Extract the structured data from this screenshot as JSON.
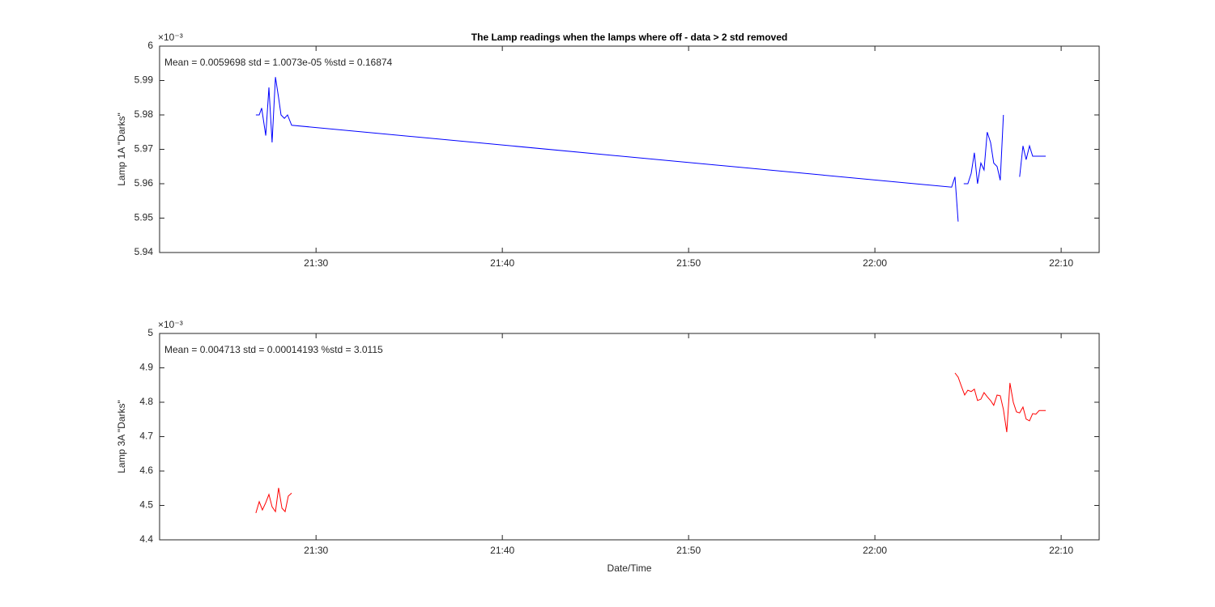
{
  "chart_data": [
    {
      "type": "line",
      "title": "The Lamp readings when the lamps where off - data > 2 std removed",
      "annotation": "Mean = 0.0059698  std = 1.0073e-05  %std = 0.16874",
      "ylabel": "Lamp 1A \"Darks\"",
      "y_exponent": "×10⁻³",
      "color": "#0000ff",
      "grid": false,
      "x": [
        1286.77,
        1286.95,
        1287.08,
        1287.3,
        1287.47,
        1287.64,
        1287.82,
        1287.99,
        1288.12,
        1288.3,
        1288.47,
        1288.69,
        1324.12,
        1324.3,
        1324.47,
        1324.6,
        1324.77,
        1324.99,
        1325.17,
        1325.34,
        1325.51,
        1325.69,
        1325.86,
        1326.03,
        1326.21,
        1326.38,
        1326.56,
        1326.73,
        1326.9,
        1327.5,
        1327.77,
        1327.95,
        1328.12,
        1328.3,
        1328.47,
        1329.17
      ],
      "values": [
        5.98,
        5.98,
        5.982,
        5.974,
        5.988,
        5.972,
        5.991,
        5.985,
        5.98,
        5.979,
        5.98,
        5.977,
        5.959,
        5.962,
        5.949,
        null,
        5.96,
        5.96,
        5.963,
        5.969,
        5.96,
        5.966,
        5.964,
        5.975,
        5.972,
        5.966,
        5.965,
        5.961,
        5.98,
        null,
        5.962,
        5.971,
        5.967,
        5.971,
        5.968,
        5.968
      ],
      "xlim": [
        1281.6,
        1332.04
      ],
      "xticks": [
        {
          "value": 1290,
          "label": "21:30"
        },
        {
          "value": 1300,
          "label": "21:40"
        },
        {
          "value": 1310,
          "label": "21:50"
        },
        {
          "value": 1320,
          "label": "22:00"
        },
        {
          "value": 1330,
          "label": "22:10"
        }
      ],
      "ylim": [
        5.94,
        6
      ],
      "yticks": [
        5.94,
        5.95,
        5.96,
        5.97,
        5.98,
        5.99,
        6
      ]
    },
    {
      "type": "line",
      "annotation": "Mean = 0.004713  std = 0.00014193  %std = 3.0115",
      "ylabel": "Lamp 3A \"Darks\"",
      "xlabel": "Date/Time",
      "y_exponent": "×10⁻³",
      "color": "#ff0000",
      "grid": false,
      "x": [
        1286.77,
        1286.95,
        1287.12,
        1287.3,
        1287.47,
        1287.64,
        1287.82,
        1287.99,
        1288.17,
        1288.34,
        1288.51,
        1288.69,
        1300,
        1324.3,
        1324.47,
        1324.64,
        1324.82,
        1324.99,
        1325.17,
        1325.34,
        1325.51,
        1325.69,
        1325.86,
        1326.03,
        1326.21,
        1326.38,
        1326.56,
        1326.73,
        1326.9,
        1327.08,
        1327.25,
        1327.43,
        1327.6,
        1327.77,
        1327.95,
        1328.12,
        1328.3,
        1328.47,
        1328.64,
        1328.82,
        1329.17
      ],
      "values": [
        4.478,
        4.511,
        4.487,
        4.508,
        4.532,
        4.496,
        4.482,
        4.551,
        4.492,
        4.482,
        4.527,
        4.536,
        null,
        4.885,
        4.873,
        4.847,
        4.821,
        4.835,
        4.831,
        4.838,
        4.805,
        4.809,
        4.828,
        4.816,
        4.805,
        4.791,
        4.821,
        4.819,
        4.779,
        4.713,
        4.856,
        4.8,
        4.772,
        4.769,
        4.786,
        4.751,
        4.746,
        4.767,
        4.765,
        4.776,
        4.776
      ],
      "xlim": [
        1281.6,
        1332.04
      ],
      "xticks": [
        {
          "value": 1290,
          "label": "21:30"
        },
        {
          "value": 1300,
          "label": "21:40"
        },
        {
          "value": 1310,
          "label": "21:50"
        },
        {
          "value": 1320,
          "label": "22:00"
        },
        {
          "value": 1330,
          "label": "22:10"
        }
      ],
      "ylim": [
        4.4,
        5
      ],
      "yticks": [
        4.4,
        4.5,
        4.6,
        4.7,
        4.8,
        4.9,
        5
      ]
    }
  ]
}
